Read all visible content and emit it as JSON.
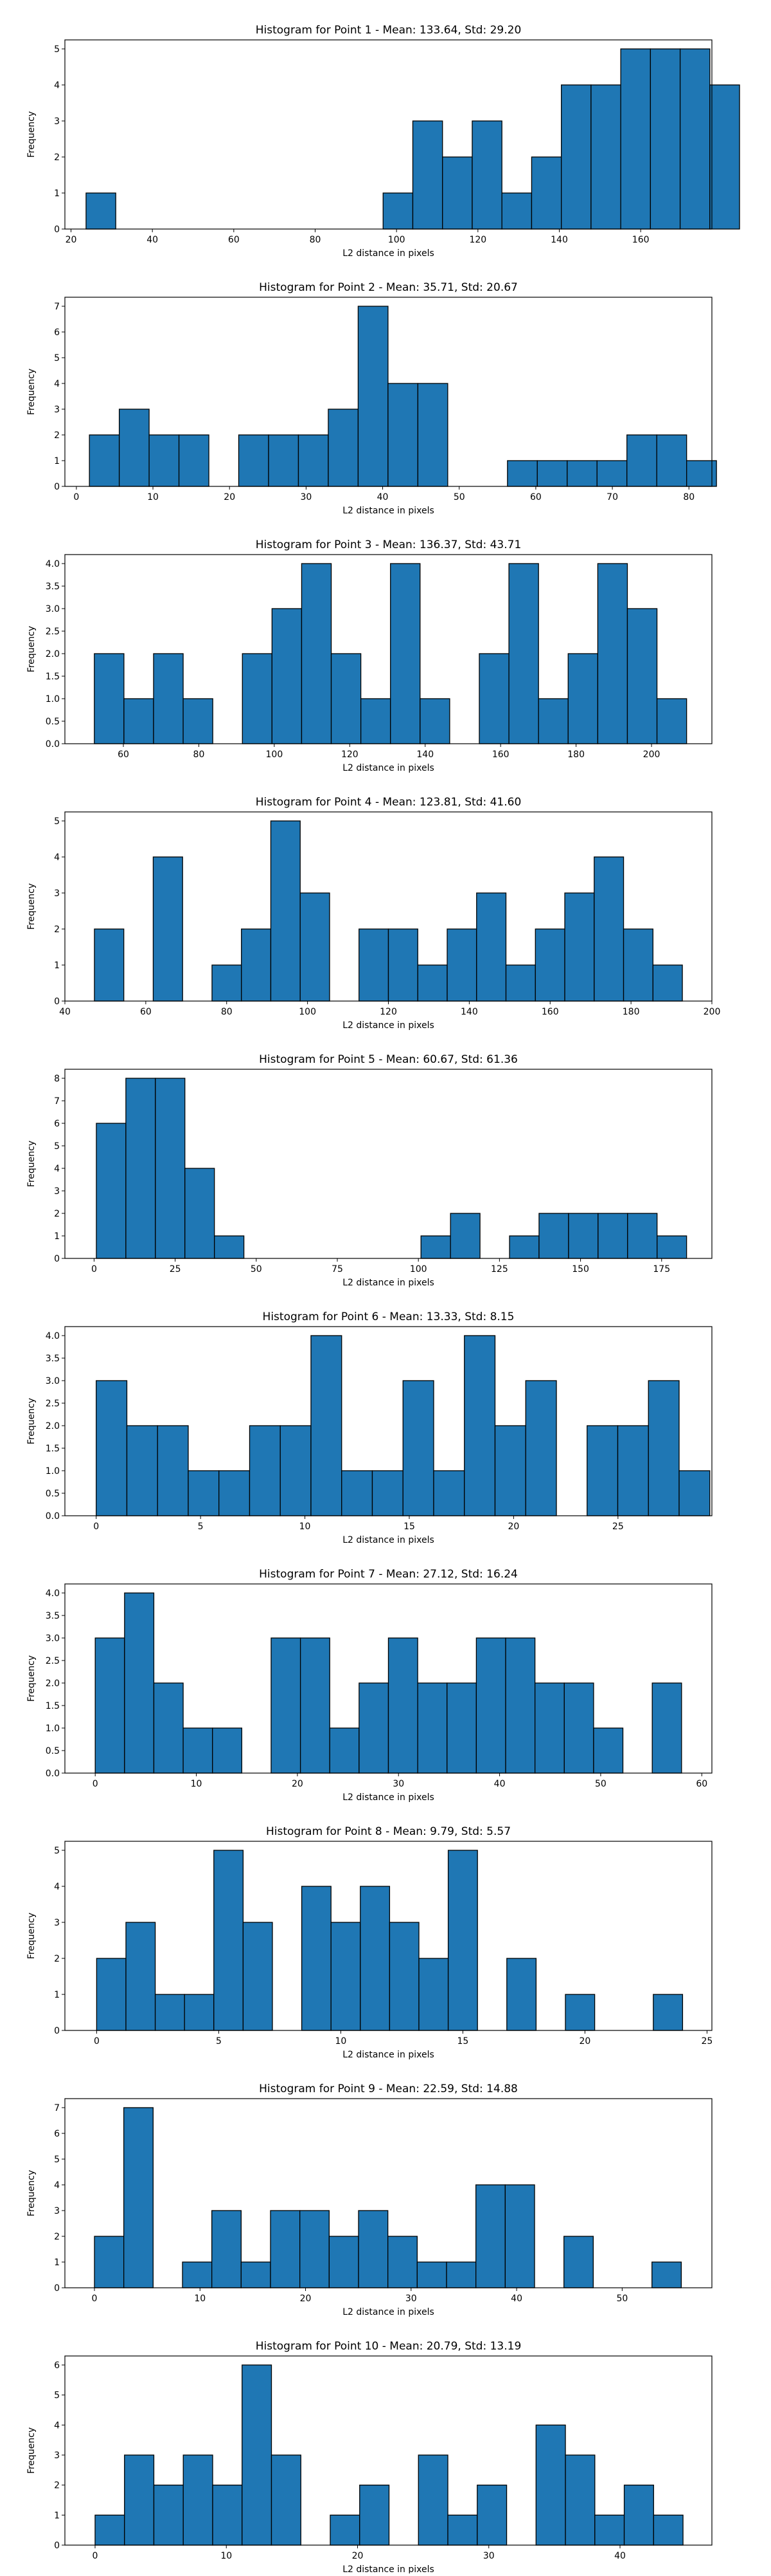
{
  "chart_data": [
    {
      "type": "bar",
      "title": "Histogram for Point 1 - Mean: 133.64, Std: 29.20",
      "xlabel": "L2 distance in pixels",
      "ylabel": "Frequency",
      "xlim": [
        18.5,
        177.5
      ],
      "ylim": [
        0,
        5.25
      ],
      "xticks": [
        20,
        40,
        60,
        80,
        100,
        120,
        140,
        160
      ],
      "yticks": [
        0,
        1,
        2,
        3,
        4,
        5
      ],
      "bin_start": 23.7,
      "bin_width": 7.3,
      "values": [
        1,
        0,
        0,
        0,
        0,
        0,
        0,
        0,
        0,
        0,
        1,
        3,
        2,
        3,
        1,
        2,
        4,
        4,
        5,
        5,
        5,
        4
      ]
    },
    {
      "type": "bar",
      "title": "Histogram for Point 2 - Mean: 35.71, Std: 20.67",
      "xlabel": "L2 distance in pixels",
      "ylabel": "Frequency",
      "xlim": [
        -1.5,
        83
      ],
      "ylim": [
        0,
        7.35
      ],
      "xticks": [
        0,
        10,
        20,
        30,
        40,
        50,
        60,
        70,
        80
      ],
      "yticks": [
        0,
        1,
        2,
        3,
        4,
        5,
        6,
        7
      ],
      "bin_start": 1.7,
      "bin_width": 3.9,
      "values": [
        2,
        3,
        2,
        2,
        0,
        2,
        2,
        2,
        3,
        7,
        4,
        4,
        0,
        0,
        1,
        1,
        1,
        1,
        2,
        2,
        1
      ]
    },
    {
      "type": "bar",
      "title": "Histogram for Point 3 - Mean: 136.37, Std: 43.71",
      "xlabel": "L2 distance in pixels",
      "ylabel": "Frequency",
      "xlim": [
        44.5,
        216
      ],
      "ylim": [
        0,
        4.2
      ],
      "xticks": [
        60,
        80,
        100,
        120,
        140,
        160,
        180,
        200
      ],
      "yticks": [
        0,
        0.5,
        1.0,
        1.5,
        2.0,
        2.5,
        3.0,
        3.5,
        4.0
      ],
      "ytick_labels": [
        "0.0",
        "0.5",
        "1.0",
        "1.5",
        "2.0",
        "2.5",
        "3.0",
        "3.5",
        "4.0"
      ],
      "bin_start": 52.3,
      "bin_width": 7.85,
      "values": [
        2,
        1,
        2,
        1,
        0,
        2,
        3,
        4,
        2,
        1,
        4,
        1,
        0,
        2,
        4,
        1,
        2,
        4,
        3,
        1
      ]
    },
    {
      "type": "bar",
      "title": "Histogram for Point 4 - Mean: 123.81, Std: 41.60",
      "xlabel": "L2 distance in pixels",
      "ylabel": "Frequency",
      "xlim": [
        40,
        200
      ],
      "ylim": [
        0,
        5.25
      ],
      "xticks": [
        40,
        60,
        80,
        100,
        120,
        140,
        160,
        180,
        200
      ],
      "yticks": [
        0,
        1,
        2,
        3,
        4,
        5
      ],
      "bin_start": 47.3,
      "bin_width": 7.27,
      "values": [
        2,
        0,
        4,
        0,
        1,
        2,
        5,
        3,
        0,
        2,
        2,
        1,
        2,
        3,
        1,
        2,
        3,
        4,
        2,
        1
      ]
    },
    {
      "type": "bar",
      "title": "Histogram for Point 5 - Mean: 60.67, Std: 61.36",
      "xlabel": "L2 distance in pixels",
      "ylabel": "Frequency",
      "xlim": [
        -9,
        190.5
      ],
      "ylim": [
        0,
        8.4
      ],
      "xticks": [
        0,
        25,
        50,
        75,
        100,
        125,
        150,
        175
      ],
      "yticks": [
        0,
        1,
        2,
        3,
        4,
        5,
        6,
        7,
        8
      ],
      "bin_start": 0.7,
      "bin_width": 9.1,
      "values": [
        6,
        8,
        8,
        4,
        1,
        0,
        0,
        0,
        0,
        0,
        0,
        1,
        2,
        0,
        1,
        2,
        2,
        2,
        2,
        1
      ]
    },
    {
      "type": "bar",
      "title": "Histogram for Point 6 - Mean: 13.33, Std: 8.15",
      "xlabel": "L2 distance in pixels",
      "ylabel": "Frequency",
      "xlim": [
        -1.5,
        29.5
      ],
      "ylim": [
        0,
        4.2
      ],
      "xticks": [
        0,
        5,
        10,
        15,
        20,
        25
      ],
      "yticks": [
        0,
        0.5,
        1.0,
        1.5,
        2.0,
        2.5,
        3.0,
        3.5,
        4.0
      ],
      "ytick_labels": [
        "0.0",
        "0.5",
        "1.0",
        "1.5",
        "2.0",
        "2.5",
        "3.0",
        "3.5",
        "4.0"
      ],
      "bin_start": 0,
      "bin_width": 1.47,
      "values": [
        3,
        2,
        2,
        1,
        1,
        2,
        2,
        4,
        1,
        1,
        3,
        1,
        4,
        2,
        3,
        0,
        2,
        2,
        3,
        1
      ]
    },
    {
      "type": "bar",
      "title": "Histogram for Point 7 - Mean: 27.12, Std: 16.24",
      "xlabel": "L2 distance in pixels",
      "ylabel": "Frequency",
      "xlim": [
        -3,
        61
      ],
      "ylim": [
        0,
        4.2
      ],
      "xticks": [
        0,
        10,
        20,
        30,
        40,
        50,
        60
      ],
      "yticks": [
        0,
        0.5,
        1.0,
        1.5,
        2.0,
        2.5,
        3.0,
        3.5,
        4.0
      ],
      "ytick_labels": [
        "0.0",
        "0.5",
        "1.0",
        "1.5",
        "2.0",
        "2.5",
        "3.0",
        "3.5",
        "4.0"
      ],
      "bin_start": 0,
      "bin_width": 2.9,
      "values": [
        3,
        4,
        2,
        1,
        1,
        0,
        3,
        3,
        1,
        2,
        3,
        2,
        2,
        3,
        3,
        2,
        2,
        1,
        0,
        2
      ]
    },
    {
      "type": "bar",
      "title": "Histogram for Point 8 - Mean: 9.79, Std: 5.57",
      "xlabel": "L2 distance in pixels",
      "ylabel": "Frequency",
      "xlim": [
        -1.3,
        25.2
      ],
      "ylim": [
        0,
        5.25
      ],
      "xticks": [
        0,
        5,
        10,
        15,
        20,
        25
      ],
      "yticks": [
        0,
        1,
        2,
        3,
        4,
        5
      ],
      "bin_start": 0,
      "bin_width": 1.2,
      "values": [
        2,
        3,
        1,
        1,
        5,
        3,
        0,
        4,
        3,
        4,
        3,
        2,
        5,
        0,
        2,
        0,
        1,
        0,
        0,
        1
      ]
    },
    {
      "type": "bar",
      "title": "Histogram for Point 9 - Mean: 22.59, Std: 14.88",
      "xlabel": "L2 distance in pixels",
      "ylabel": "Frequency",
      "xlim": [
        -2.8,
        58.5
      ],
      "ylim": [
        0,
        7.35
      ],
      "xticks": [
        0,
        10,
        20,
        30,
        40,
        50
      ],
      "yticks": [
        0,
        1,
        2,
        3,
        4,
        5,
        6,
        7
      ],
      "bin_start": 0,
      "bin_width": 2.78,
      "values": [
        2,
        7,
        0,
        1,
        3,
        1,
        3,
        3,
        2,
        3,
        2,
        1,
        1,
        4,
        4,
        0,
        2,
        0,
        0,
        1
      ]
    },
    {
      "type": "bar",
      "title": "Histogram for Point 10 - Mean: 20.79, Std: 13.19",
      "xlabel": "L2 distance in pixels",
      "ylabel": "Frequency",
      "xlim": [
        -2.3,
        47
      ],
      "ylim": [
        0,
        6.3
      ],
      "xticks": [
        0,
        10,
        20,
        30,
        40
      ],
      "yticks": [
        0,
        1,
        2,
        3,
        4,
        5,
        6
      ],
      "bin_start": 0,
      "bin_width": 2.24,
      "values": [
        1,
        3,
        2,
        3,
        2,
        6,
        3,
        0,
        1,
        2,
        0,
        3,
        1,
        2,
        0,
        4,
        3,
        1,
        2,
        1
      ]
    }
  ],
  "colors": {
    "bar_fill": "#1f77b4",
    "bar_edge": "#000000"
  }
}
